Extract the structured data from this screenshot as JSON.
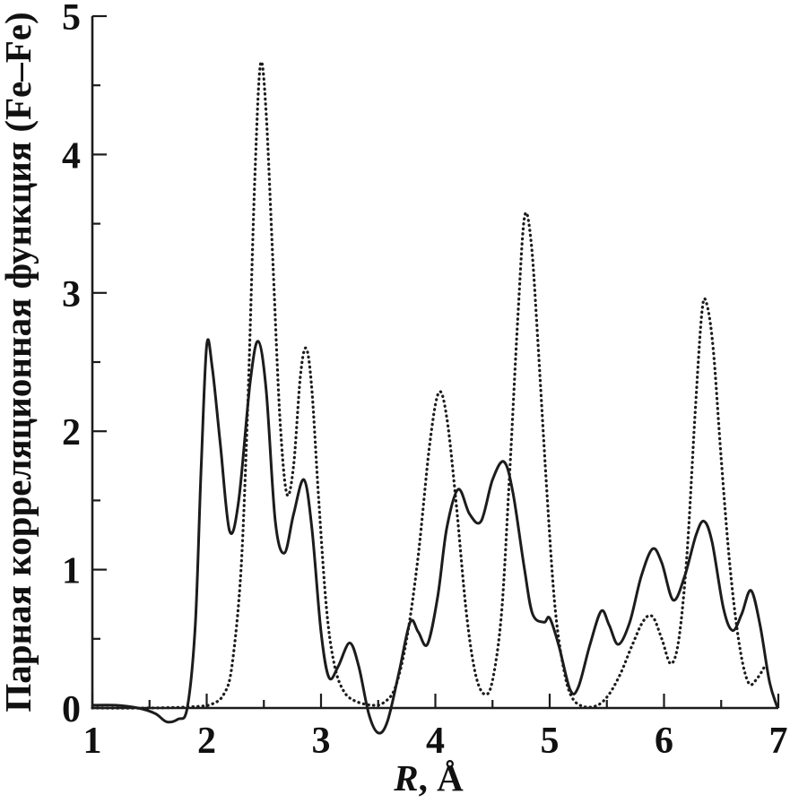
{
  "chart_data": {
    "type": "line",
    "xlabel_italic": "R",
    "xlabel_rest": ", Å",
    "ylabel": "Парная корреляционная функция (Fe–Fe)",
    "xlim": [
      1,
      7
    ],
    "ylim": [
      0,
      5
    ],
    "xticks": [
      1,
      2,
      3,
      4,
      5,
      6,
      7
    ],
    "yticks": [
      0,
      1,
      2,
      3,
      4,
      5
    ],
    "minor_tick_step": 0.5,
    "grid": false,
    "legend": "none",
    "line_color": "#1c1c1c",
    "series": [
      {
        "name": "solid",
        "style": "solid",
        "points": [
          [
            1.0,
            0.02
          ],
          [
            1.2,
            0.02
          ],
          [
            1.4,
            0.0
          ],
          [
            1.55,
            -0.04
          ],
          [
            1.65,
            -0.1
          ],
          [
            1.75,
            -0.08
          ],
          [
            1.83,
            0.0
          ],
          [
            1.9,
            0.6
          ],
          [
            1.95,
            1.7
          ],
          [
            2.0,
            2.62
          ],
          [
            2.05,
            2.45
          ],
          [
            2.12,
            1.9
          ],
          [
            2.2,
            1.28
          ],
          [
            2.28,
            1.5
          ],
          [
            2.38,
            2.35
          ],
          [
            2.45,
            2.65
          ],
          [
            2.52,
            2.3
          ],
          [
            2.6,
            1.35
          ],
          [
            2.68,
            1.12
          ],
          [
            2.76,
            1.4
          ],
          [
            2.85,
            1.65
          ],
          [
            2.92,
            1.3
          ],
          [
            3.0,
            0.55
          ],
          [
            3.07,
            0.22
          ],
          [
            3.15,
            0.3
          ],
          [
            3.25,
            0.47
          ],
          [
            3.33,
            0.3
          ],
          [
            3.42,
            -0.05
          ],
          [
            3.5,
            -0.18
          ],
          [
            3.58,
            -0.1
          ],
          [
            3.68,
            0.25
          ],
          [
            3.78,
            0.62
          ],
          [
            3.85,
            0.55
          ],
          [
            3.93,
            0.46
          ],
          [
            4.02,
            0.8
          ],
          [
            4.1,
            1.3
          ],
          [
            4.2,
            1.58
          ],
          [
            4.3,
            1.4
          ],
          [
            4.4,
            1.35
          ],
          [
            4.5,
            1.65
          ],
          [
            4.6,
            1.78
          ],
          [
            4.68,
            1.55
          ],
          [
            4.78,
            1.0
          ],
          [
            4.85,
            0.68
          ],
          [
            4.95,
            0.62
          ],
          [
            5.0,
            0.65
          ],
          [
            5.08,
            0.45
          ],
          [
            5.18,
            0.13
          ],
          [
            5.25,
            0.15
          ],
          [
            5.35,
            0.45
          ],
          [
            5.45,
            0.7
          ],
          [
            5.52,
            0.6
          ],
          [
            5.6,
            0.46
          ],
          [
            5.7,
            0.62
          ],
          [
            5.8,
            0.95
          ],
          [
            5.9,
            1.15
          ],
          [
            5.98,
            1.05
          ],
          [
            6.08,
            0.78
          ],
          [
            6.18,
            0.95
          ],
          [
            6.28,
            1.25
          ],
          [
            6.35,
            1.35
          ],
          [
            6.42,
            1.2
          ],
          [
            6.52,
            0.72
          ],
          [
            6.6,
            0.56
          ],
          [
            6.68,
            0.68
          ],
          [
            6.76,
            0.85
          ],
          [
            6.84,
            0.6
          ],
          [
            6.92,
            0.2
          ],
          [
            6.98,
            0.03
          ],
          [
            7.0,
            0.0
          ]
        ]
      },
      {
        "name": "dotted",
        "style": "dotted",
        "points": [
          [
            1.0,
            0.0
          ],
          [
            1.5,
            0.0
          ],
          [
            1.9,
            0.01
          ],
          [
            2.05,
            0.03
          ],
          [
            2.15,
            0.1
          ],
          [
            2.22,
            0.3
          ],
          [
            2.3,
            1.0
          ],
          [
            2.36,
            2.2
          ],
          [
            2.42,
            3.8
          ],
          [
            2.47,
            4.65
          ],
          [
            2.52,
            4.3
          ],
          [
            2.58,
            3.2
          ],
          [
            2.64,
            2.1
          ],
          [
            2.7,
            1.55
          ],
          [
            2.76,
            1.75
          ],
          [
            2.82,
            2.4
          ],
          [
            2.87,
            2.6
          ],
          [
            2.92,
            2.3
          ],
          [
            2.98,
            1.5
          ],
          [
            3.05,
            0.7
          ],
          [
            3.12,
            0.3
          ],
          [
            3.2,
            0.12
          ],
          [
            3.3,
            0.05
          ],
          [
            3.45,
            0.02
          ],
          [
            3.55,
            0.04
          ],
          [
            3.65,
            0.15
          ],
          [
            3.75,
            0.5
          ],
          [
            3.85,
            1.1
          ],
          [
            3.95,
            1.9
          ],
          [
            4.03,
            2.28
          ],
          [
            4.1,
            2.1
          ],
          [
            4.18,
            1.5
          ],
          [
            4.27,
            0.7
          ],
          [
            4.35,
            0.25
          ],
          [
            4.43,
            0.1
          ],
          [
            4.5,
            0.2
          ],
          [
            4.58,
            0.7
          ],
          [
            4.65,
            1.7
          ],
          [
            4.72,
            2.8
          ],
          [
            4.78,
            3.55
          ],
          [
            4.84,
            3.35
          ],
          [
            4.9,
            2.6
          ],
          [
            4.98,
            1.5
          ],
          [
            5.05,
            0.7
          ],
          [
            5.13,
            0.25
          ],
          [
            5.2,
            0.07
          ],
          [
            5.3,
            0.01
          ],
          [
            5.42,
            0.02
          ],
          [
            5.52,
            0.1
          ],
          [
            5.62,
            0.25
          ],
          [
            5.72,
            0.45
          ],
          [
            5.82,
            0.63
          ],
          [
            5.9,
            0.66
          ],
          [
            5.98,
            0.5
          ],
          [
            6.06,
            0.32
          ],
          [
            6.13,
            0.5
          ],
          [
            6.2,
            1.1
          ],
          [
            6.27,
            2.1
          ],
          [
            6.33,
            2.85
          ],
          [
            6.37,
            2.93
          ],
          [
            6.43,
            2.6
          ],
          [
            6.5,
            1.8
          ],
          [
            6.58,
            1.0
          ],
          [
            6.66,
            0.45
          ],
          [
            6.74,
            0.18
          ],
          [
            6.82,
            0.22
          ],
          [
            6.88,
            0.3
          ]
        ]
      }
    ]
  }
}
